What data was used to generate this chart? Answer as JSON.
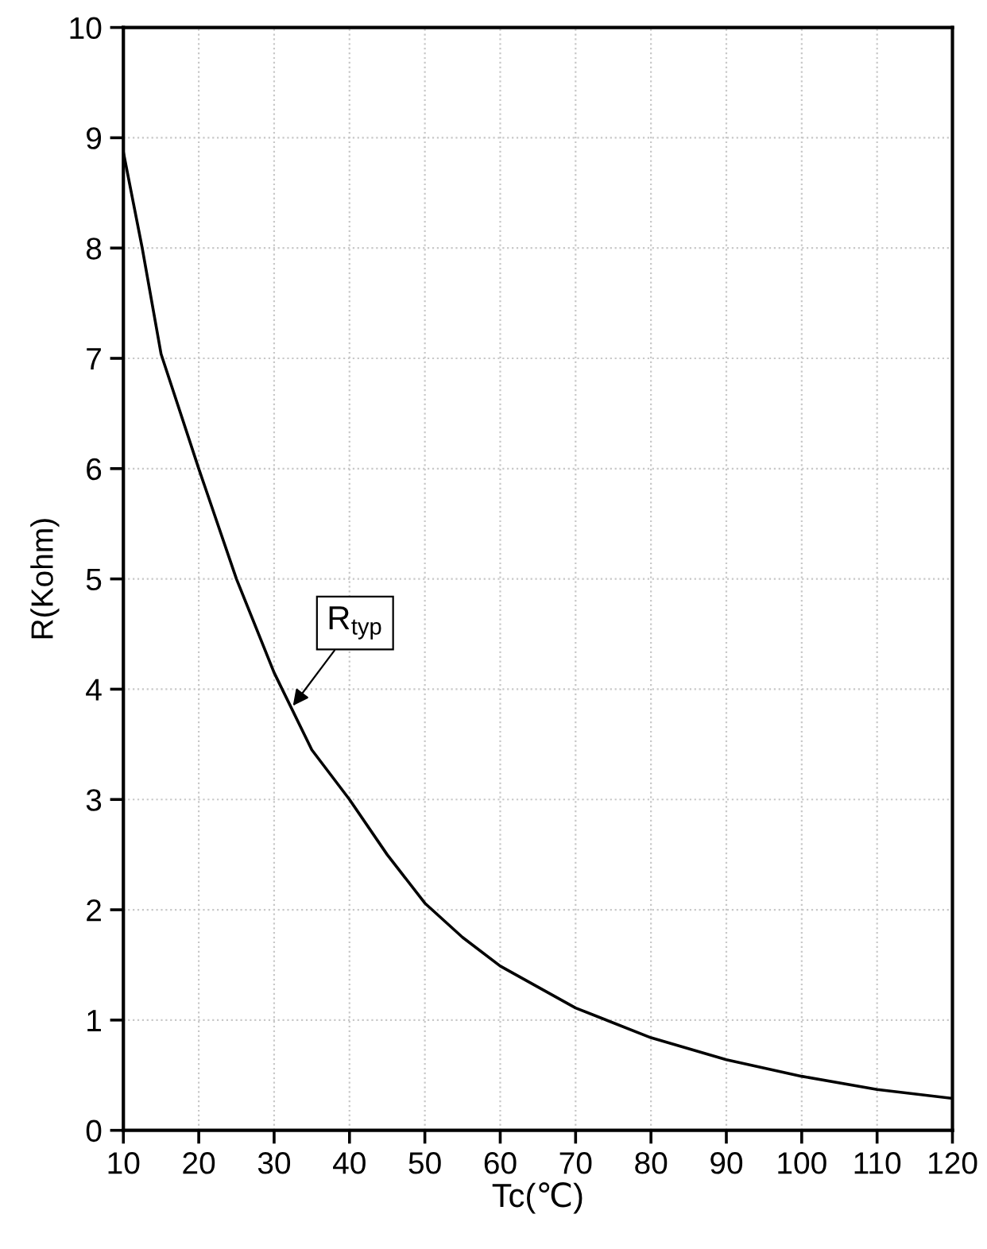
{
  "chart_data": {
    "type": "line",
    "xlabel": "Tc(℃)",
    "ylabel": "R(Kohm)",
    "x": [
      10,
      12.5,
      15,
      20,
      25,
      30,
      35,
      40,
      45,
      50,
      55,
      60,
      70,
      80,
      90,
      100,
      110,
      120
    ],
    "series": [
      {
        "color": "#000000",
        "values": [
          8.87,
          8.0,
          7.04,
          6.0,
          5.0,
          4.15,
          3.45,
          3.0,
          2.5,
          2.06,
          1.75,
          1.49,
          1.11,
          0.84,
          0.64,
          0.49,
          0.37,
          0.29
        ]
      }
    ],
    "annotations": [
      {
        "text": "R$_{typ}$",
        "x": 32.5,
        "y": 3.85
      }
    ],
    "xlim": [
      10,
      120
    ],
    "xticks": [
      10,
      20,
      30,
      40,
      50,
      60,
      70,
      80,
      90,
      100,
      110,
      120
    ],
    "ylim": [
      0,
      10
    ],
    "yticks": [
      0,
      1,
      2,
      3,
      4,
      5,
      6,
      7,
      8,
      9,
      10
    ],
    "grid": true,
    "marker": "none",
    "line_style": "solid"
  }
}
